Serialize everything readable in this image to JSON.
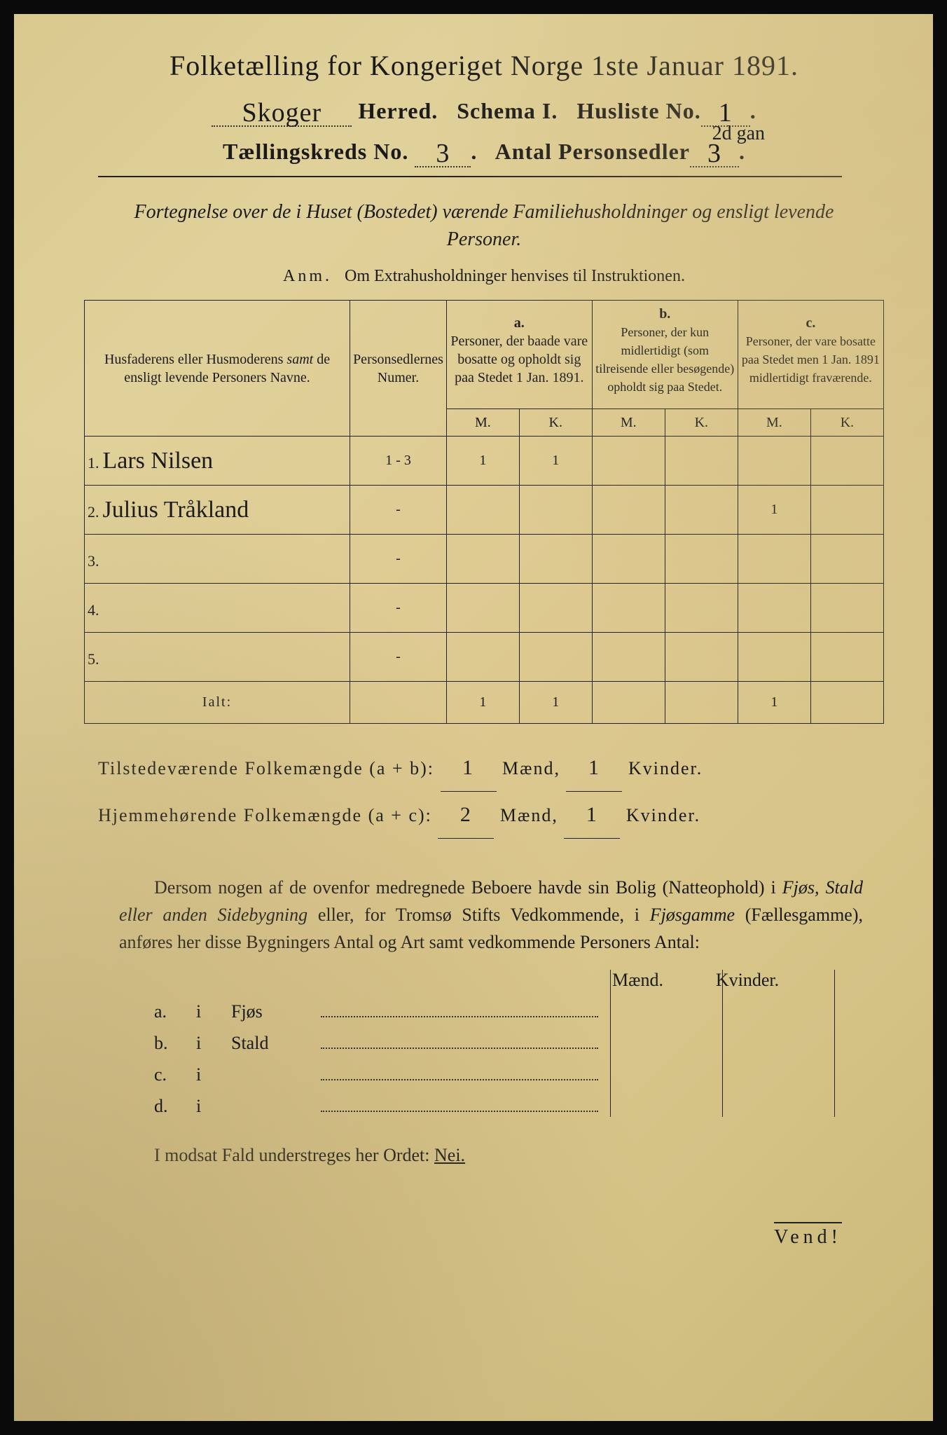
{
  "title": "Folketælling for Kongeriget Norge 1ste Januar 1891.",
  "header": {
    "herred_value": "Skoger",
    "herred_label": "Herred.",
    "schema": "Schema I.",
    "husliste_label": "Husliste No.",
    "husliste_value": "1",
    "annotation": "2d gan",
    "kreds_label": "Tællingskreds No.",
    "kreds_value": "3",
    "antal_label": "Antal Personsedler",
    "antal_value": "3"
  },
  "intro": "Fortegnelse over de i Huset (Bostedet) værende Familiehusholdninger og ensligt levende Personer.",
  "anm_label": "Anm.",
  "anm_text": "Om Extrahusholdninger henvises til Instruktionen.",
  "columns": {
    "name": "Husfaderens eller Husmoderens samt de ensligt levende Personers Navne.",
    "num": "Personsedlernes Numer.",
    "a_label": "a.",
    "a_text": "Personer, der baade vare bosatte og opholdt sig paa Stedet 1 Jan. 1891.",
    "b_label": "b.",
    "b_text": "Personer, der kun midlertidigt (som tilreisende eller besøgende) opholdt sig paa Stedet.",
    "c_label": "c.",
    "c_text": "Personer, der vare bosatte paa Stedet men 1 Jan. 1891 midlertidigt fraværende.",
    "M": "M.",
    "K": "K."
  },
  "rows": [
    {
      "n": "1.",
      "name": "Lars Nilsen",
      "num": "1 - 3",
      "aM": "1",
      "aK": "1",
      "bM": "",
      "bK": "",
      "cM": "",
      "cK": ""
    },
    {
      "n": "2.",
      "name": "Julius Tråkland",
      "num": "-",
      "aM": "",
      "aK": "",
      "bM": "",
      "bK": "",
      "cM": "1",
      "cK": ""
    },
    {
      "n": "3.",
      "name": "",
      "num": "-",
      "aM": "",
      "aK": "",
      "bM": "",
      "bK": "",
      "cM": "",
      "cK": ""
    },
    {
      "n": "4.",
      "name": "",
      "num": "-",
      "aM": "",
      "aK": "",
      "bM": "",
      "bK": "",
      "cM": "",
      "cK": ""
    },
    {
      "n": "5.",
      "name": "",
      "num": "-",
      "aM": "",
      "aK": "",
      "bM": "",
      "bK": "",
      "cM": "",
      "cK": ""
    }
  ],
  "ialt": {
    "label": "Ialt:",
    "aM": "1",
    "aK": "1",
    "cM": "1"
  },
  "summary": {
    "line1_a": "Tilstedeværende Folkemængde (a + b):",
    "line1_m": "1",
    "line1_mlabel": "Mænd,",
    "line1_k": "1",
    "line1_klabel": "Kvinder.",
    "line2_a": "Hjemmehørende Folkemængde (a + c):",
    "line2_m": "2",
    "line2_mlabel": "Mænd,",
    "line2_k": "1",
    "line2_klabel": "Kvinder."
  },
  "body": "Dersom nogen af de ovenfor medregnede Beboere havde sin Bolig (Natteophold) i Fjøs, Stald eller anden Sidebygning eller, for Tromsø Stifts Vedkommende, i Fjøsgamme (Fællesgamme), anføres her disse Bygningers Antal og Art samt vedkommende Personers Antal:",
  "fjøs": {
    "mænd": "Mænd.",
    "kvinder": "Kvinder.",
    "rows": [
      {
        "a": "a.",
        "i": "i",
        "t": "Fjøs"
      },
      {
        "a": "b.",
        "i": "i",
        "t": "Stald"
      },
      {
        "a": "c.",
        "i": "i",
        "t": ""
      },
      {
        "a": "d.",
        "i": "i",
        "t": ""
      }
    ]
  },
  "nei": "I modsat Fald understreges her Ordet: ",
  "nei_word": "Nei.",
  "vend": "Vend!"
}
